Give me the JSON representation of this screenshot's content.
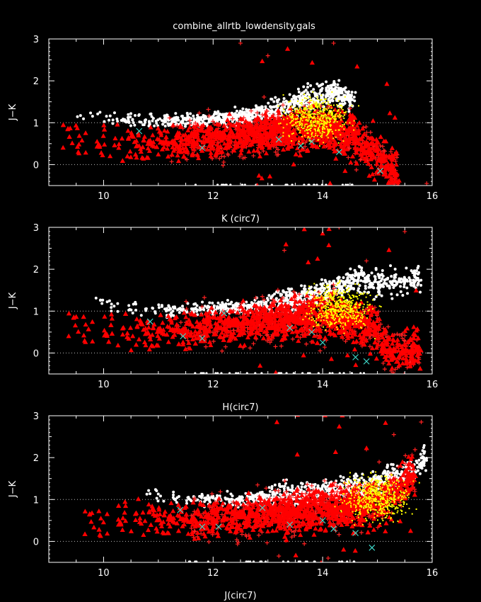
{
  "title": "combine_allrtb_lowdensity.gals",
  "colors": {
    "background": "#000000",
    "axes": "#ffffff",
    "white_points": "#ffffff",
    "red_triangles": "#ff0000",
    "red_crosses": "#ff2020",
    "yellow_points": "#ffff00",
    "cyan_crosses": "#40e0d0",
    "reference_lines": "#bbbbbb"
  },
  "chart_data": [
    {
      "type": "scatter",
      "xlabel": "K (circ7)",
      "ylabel": "J−K",
      "xlim": [
        9,
        16
      ],
      "ylim": [
        -0.5,
        3
      ],
      "x_ticks": [
        "10",
        "12",
        "14",
        "16"
      ],
      "y_ticks": [
        "0",
        "1",
        "2",
        "3"
      ],
      "reference_lines_y": [
        0,
        1
      ],
      "grid": false,
      "series": [
        {
          "marker": "white-dot",
          "color": "#ffffff",
          "trend": {
            "x": [
              9.5,
              10.5,
              11.5,
              12.5,
              13.2,
              13.7,
              14.2,
              14.6
            ],
            "y": [
              1.15,
              1.05,
              1.05,
              1.15,
              1.3,
              1.6,
              1.7,
              1.5
            ]
          }
        },
        {
          "marker": "red-triangle",
          "color": "#ff0000",
          "trend": {
            "x": [
              9.2,
              10.5,
              11.5,
              12.5,
              13.5,
              14.0,
              14.6,
              15.1,
              15.4
            ],
            "y": [
              0.65,
              0.45,
              0.55,
              0.7,
              0.85,
              0.9,
              0.7,
              0.1,
              -0.35
            ]
          }
        },
        {
          "marker": "red-cross",
          "color": "#ff2020",
          "outliers": [
            [
              12.5,
              2.9
            ],
            [
              13.0,
              2.6
            ],
            [
              14.2,
              2.9
            ],
            [
              15.9,
              -0.45
            ]
          ]
        },
        {
          "marker": "yellow-dot",
          "color": "#ffff00",
          "center": [
            13.9,
            1.1
          ]
        },
        {
          "marker": "cyan-cross",
          "color": "#40e0d0",
          "points": [
            [
              10.65,
              0.8
            ],
            [
              11.8,
              0.4
            ],
            [
              13.2,
              0.6
            ],
            [
              13.6,
              0.45
            ],
            [
              13.8,
              0.55
            ],
            [
              14.3,
              0.3
            ],
            [
              15.05,
              -0.15
            ]
          ]
        }
      ]
    },
    {
      "type": "scatter",
      "xlabel": "H(circ7)",
      "ylabel": "J−K",
      "xlim": [
        9,
        16
      ],
      "ylim": [
        -0.5,
        3
      ],
      "x_ticks": [
        "10",
        "12",
        "14",
        "16"
      ],
      "y_ticks": [
        "0",
        "1",
        "2",
        "3"
      ],
      "reference_lines_y": [
        0,
        1
      ],
      "grid": false,
      "series": [
        {
          "marker": "white-dot",
          "color": "#ffffff",
          "trend": {
            "x": [
              9.8,
              10.8,
              11.8,
              12.8,
              13.6,
              14.1,
              14.6,
              15.0,
              15.8
            ],
            "y": [
              1.2,
              1.0,
              1.05,
              1.1,
              1.3,
              1.5,
              1.8,
              1.7,
              1.75
            ]
          }
        },
        {
          "marker": "red-triangle",
          "color": "#ff0000",
          "trend": {
            "x": [
              9.3,
              10.5,
              11.5,
              12.5,
              13.5,
              14.2,
              14.9,
              15.3,
              15.8
            ],
            "y": [
              0.65,
              0.45,
              0.55,
              0.7,
              0.85,
              0.9,
              0.65,
              0.0,
              0.1
            ]
          }
        },
        {
          "marker": "red-cross",
          "color": "#ff2020",
          "outliers": [
            [
              14.3,
              3.0
            ],
            [
              15.5,
              2.9
            ],
            [
              13.3,
              2.45
            ],
            [
              14.8,
              2.2
            ]
          ]
        },
        {
          "marker": "yellow-dot",
          "color": "#ffff00",
          "center": [
            14.3,
            1.1
          ]
        },
        {
          "marker": "cyan-cross",
          "color": "#40e0d0",
          "points": [
            [
              10.85,
              0.75
            ],
            [
              11.45,
              0.4
            ],
            [
              11.8,
              0.35
            ],
            [
              12.2,
              0.95
            ],
            [
              13.4,
              0.6
            ],
            [
              13.8,
              0.5
            ],
            [
              14.0,
              0.25
            ],
            [
              14.6,
              -0.1
            ],
            [
              14.8,
              -0.2
            ]
          ]
        }
      ]
    },
    {
      "type": "scatter",
      "xlabel": "J(circ7)",
      "ylabel": "J−K",
      "xlim": [
        9,
        16
      ],
      "ylim": [
        -0.5,
        3
      ],
      "x_ticks": [
        "10",
        "12",
        "14",
        "16"
      ],
      "y_ticks": [
        "0",
        "1",
        "2",
        "3"
      ],
      "reference_lines_y": [
        0,
        1
      ],
      "grid": false,
      "series": [
        {
          "marker": "white-dot",
          "color": "#ffffff",
          "trend": {
            "x": [
              10.7,
              11.5,
              12.5,
              13.5,
              14.3,
              15.0,
              15.5,
              15.9
            ],
            "y": [
              1.15,
              1.0,
              1.0,
              1.1,
              1.25,
              1.4,
              1.7,
              2.0
            ]
          }
        },
        {
          "marker": "red-triangle",
          "color": "#ff0000",
          "trend": {
            "x": [
              9.6,
              10.5,
              11.5,
              12.5,
              13.5,
              14.3,
              14.9,
              15.3,
              15.7
            ],
            "y": [
              0.4,
              0.55,
              0.5,
              0.6,
              0.7,
              0.85,
              0.9,
              1.2,
              1.6
            ]
          }
        },
        {
          "marker": "red-cross",
          "color": "#ff2020",
          "outliers": [
            [
              15.8,
              2.85
            ],
            [
              15.3,
              2.55
            ],
            [
              14.8,
              2.2
            ],
            [
              14.1,
              -0.4
            ],
            [
              13.2,
              -0.35
            ]
          ]
        },
        {
          "marker": "yellow-dot",
          "color": "#ffff00",
          "center": [
            15.0,
            1.05
          ]
        },
        {
          "marker": "cyan-cross",
          "color": "#40e0d0",
          "points": [
            [
              11.4,
              0.75
            ],
            [
              11.8,
              0.35
            ],
            [
              12.1,
              0.35
            ],
            [
              12.9,
              0.8
            ],
            [
              13.4,
              0.4
            ],
            [
              14.0,
              0.5
            ],
            [
              14.2,
              0.3
            ],
            [
              14.6,
              0.2
            ],
            [
              14.9,
              -0.15
            ]
          ]
        }
      ]
    }
  ]
}
